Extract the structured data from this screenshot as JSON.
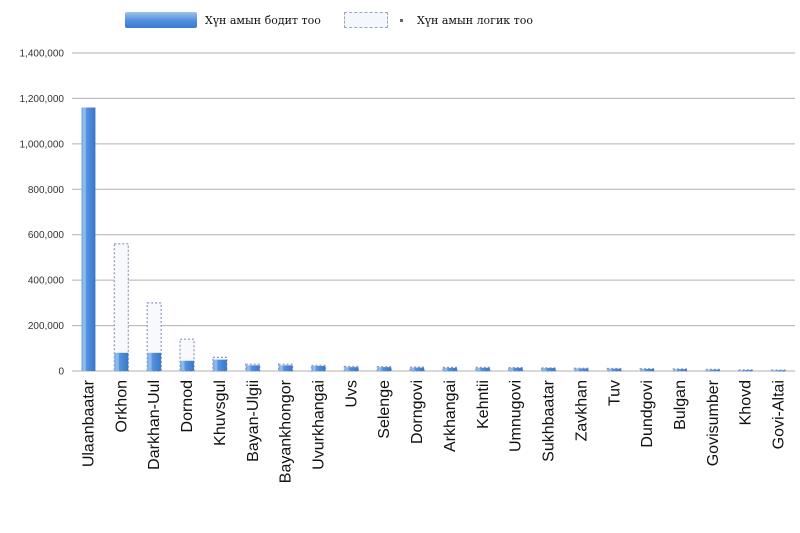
{
  "chart_data": {
    "type": "bar",
    "categories": [
      "Ulaanbaatar",
      "Orkhon",
      "Darkhan-Uul",
      "Dornod",
      "Khuvsgul",
      "Bayan-Ulgii",
      "Bayankhongor",
      "Uvurkhangai",
      "Uvs",
      "Selenge",
      "Dorngovi",
      "Arkhangai",
      "Kehntii",
      "Umnugovi",
      "Sukhbaatar",
      "Zavkhan",
      "Tuv",
      "Dundgovi",
      "Bulgan",
      "Govisumber",
      "Khovd",
      "Govi-Altai"
    ],
    "series": [
      {
        "name": "Хүн амын бодит тоо",
        "style": "solid-gradient",
        "values": [
          1160000,
          80000,
          80000,
          45000,
          50000,
          25000,
          25000,
          22000,
          17000,
          17000,
          15000,
          14000,
          14000,
          14000,
          13000,
          11000,
          10000,
          9000,
          8000,
          6000,
          4000,
          3000
        ]
      },
      {
        "name": "Хүн амын логик тоо",
        "style": "dashed-outline",
        "values": [
          0,
          560000,
          300000,
          140000,
          60000,
          30000,
          30000,
          25000,
          20000,
          19000,
          17000,
          16000,
          16000,
          15000,
          14000,
          12000,
          11000,
          10000,
          9000,
          7000,
          5000,
          4000
        ]
      }
    ],
    "yticks": [
      "0",
      "200,000",
      "400,000",
      "600,000",
      "800,000",
      "1,000,000",
      "1,200,000",
      "1,400,000"
    ],
    "ylim": [
      0,
      1400000
    ],
    "grid": true,
    "legend_position": "top",
    "colors": {
      "solid": "#4f8fdc",
      "solid_light": "#a8caf0",
      "dashed": "#8d99b3",
      "grid": "#b0b0b0"
    }
  }
}
